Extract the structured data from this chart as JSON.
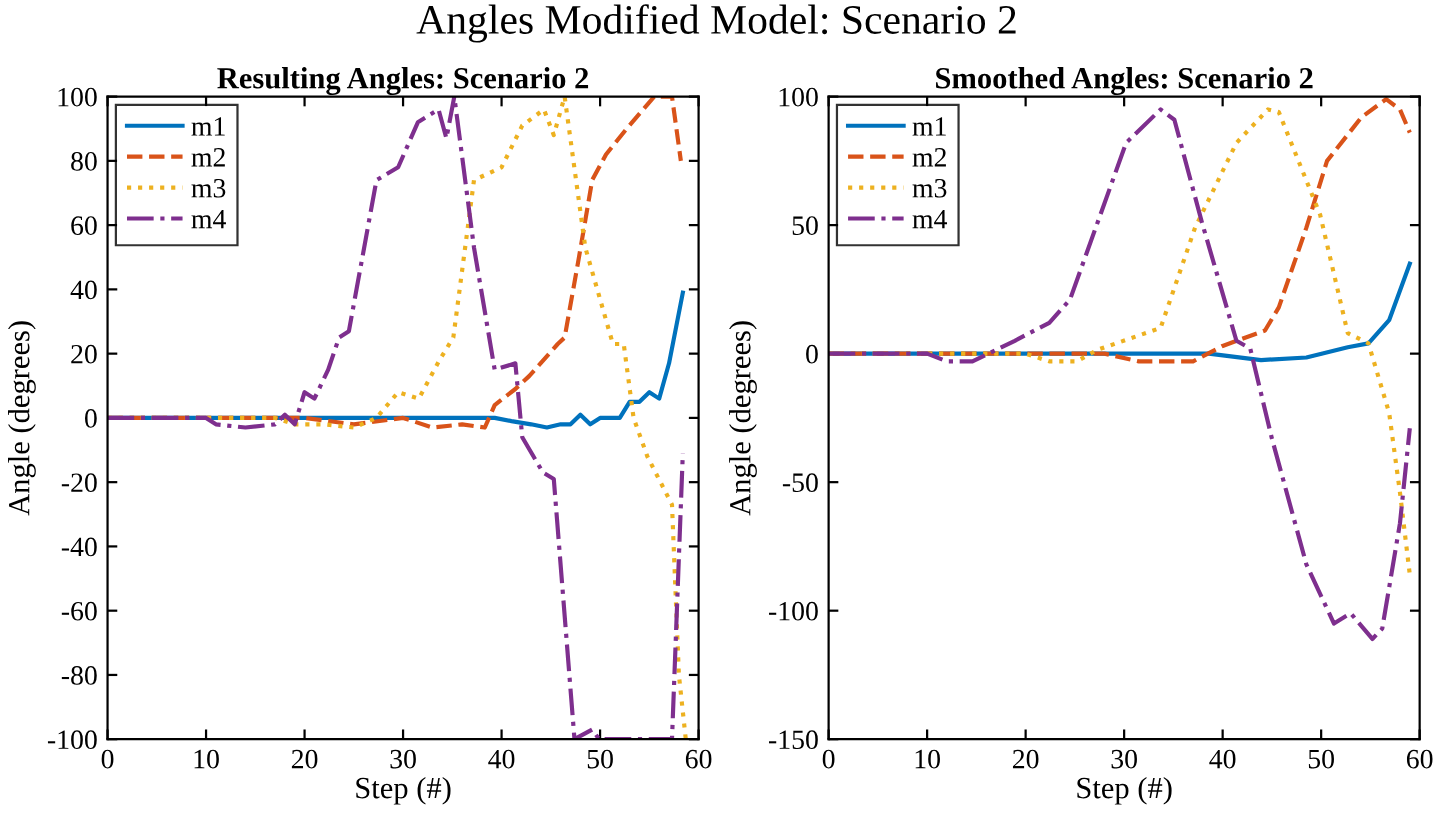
{
  "chart_data": [
    {
      "type": "line",
      "title": "Resulting Angles: Scenario 2",
      "xlabel": "Step (#)",
      "ylabel": "Angle (degrees)",
      "annotations": [
        "Angles Modified Model: Scenario 2"
      ],
      "xlim": [
        0,
        60
      ],
      "xticks": [
        0,
        10,
        20,
        30,
        40,
        50,
        60
      ],
      "ylim": [
        -100,
        100
      ],
      "yticks": [
        -100,
        -80,
        -60,
        -40,
        -20,
        0,
        20,
        40,
        60,
        80,
        100
      ],
      "grid": false,
      "legend": "top left",
      "series": [
        {
          "name": "m1",
          "color": "#0072bd",
          "line_style": "solid",
          "x": [
            0,
            39.3,
            41,
            43,
            44.6,
            46,
            47,
            48,
            49,
            50,
            52,
            53,
            54,
            55,
            56,
            57,
            58.4
          ],
          "values": [
            0,
            0,
            -1,
            -2,
            -3,
            -2,
            -2,
            1,
            -2,
            0,
            0,
            5,
            5,
            8,
            6,
            17,
            39
          ]
        },
        {
          "name": "m2",
          "color": "#d95319",
          "line_style": "dashed",
          "x": [
            0,
            20,
            25,
            30,
            33,
            36,
            38.3,
            39.3,
            41.4,
            42.8,
            45.7,
            46.4,
            47.8,
            49.2,
            50.6,
            52.7,
            55.5,
            57.3,
            58.2
          ],
          "values": [
            0,
            0,
            -2,
            0,
            -3,
            -2,
            -3,
            4,
            9,
            13,
            23,
            25,
            49,
            74,
            82,
            90,
            100,
            100,
            80
          ]
        },
        {
          "name": "m3",
          "color": "#edb120",
          "line_style": "dotted",
          "x": [
            0,
            17,
            19,
            22,
            25,
            27.3,
            29.5,
            31.6,
            33.7,
            35.1,
            37.2,
            40,
            42.1,
            44.3,
            45.3,
            46.4,
            48.5,
            51.3,
            52.4,
            53.4,
            54.8,
            57.3,
            58,
            58.7
          ],
          "values": [
            0,
            0,
            -2,
            -2,
            -3,
            0,
            8,
            6,
            18,
            25,
            74,
            78,
            91,
            96,
            88,
            100,
            53,
            23,
            23,
            0,
            -12,
            -27,
            -80,
            -100
          ]
        },
        {
          "name": "m4",
          "color": "#7e2f8e",
          "line_style": "dashdot",
          "x": [
            0,
            10,
            11,
            14,
            17,
            18,
            19,
            20,
            21,
            22.4,
            23.5,
            24.5,
            27.3,
            29.5,
            31.5,
            33.6,
            34.4,
            35.2,
            37.2,
            39.3,
            41.4,
            42.1,
            44.2,
            45.3,
            47.4,
            49.2,
            49.9,
            57.3,
            58.4
          ],
          "values": [
            0,
            0,
            -2,
            -3,
            -2,
            1,
            -2,
            8,
            6,
            15,
            25,
            27,
            74,
            78,
            92,
            96,
            87,
            100,
            53,
            15,
            17,
            -6,
            -17,
            -19,
            -100,
            -97,
            -100,
            -100,
            -11
          ]
        }
      ]
    },
    {
      "type": "line",
      "title": "Smoothed Angles: Scenario 2",
      "xlabel": "Step (#)",
      "ylabel": "Angle (degrees)",
      "xlim": [
        0,
        60
      ],
      "xticks": [
        0,
        10,
        20,
        30,
        40,
        50,
        60
      ],
      "ylim": [
        -150,
        100
      ],
      "yticks": [
        -150,
        -100,
        -50,
        0,
        50,
        100
      ],
      "grid": false,
      "legend": "top left",
      "series": [
        {
          "name": "m1",
          "color": "#0072bd",
          "line_style": "solid",
          "x": [
            0,
            38.6,
            43.9,
            48.5,
            52.7,
            54.8,
            56.9,
            59
          ],
          "values": [
            0,
            0,
            -2.5,
            -1.5,
            2.5,
            4,
            13,
            35
          ]
        },
        {
          "name": "m2",
          "color": "#d95319",
          "line_style": "dashed",
          "x": [
            0,
            28,
            31.5,
            37,
            40,
            44.3,
            45.7,
            48.5,
            50.6,
            54.1,
            56.6,
            58,
            59
          ],
          "values": [
            0,
            0,
            -3,
            -3,
            3,
            9,
            18,
            49,
            75,
            92,
            99,
            95,
            86
          ]
        },
        {
          "name": "m3",
          "color": "#edb120",
          "line_style": "dotted",
          "x": [
            0,
            20,
            22.4,
            25.2,
            27.3,
            33.7,
            37.2,
            41.4,
            44.6,
            45.7,
            49.9,
            52.7,
            54.8,
            56.9,
            58,
            59
          ],
          "values": [
            0,
            0,
            -3,
            -3,
            1.5,
            10,
            49,
            82,
            95,
            94,
            54,
            8,
            4,
            -23,
            -54,
            -86
          ]
        },
        {
          "name": "m4",
          "color": "#7e2f8e",
          "line_style": "dashdot",
          "x": [
            0,
            10,
            12,
            14.6,
            18.9,
            22.4,
            24.5,
            30.2,
            33.7,
            35.1,
            37.9,
            41.4,
            42.8,
            45,
            48.5,
            51.3,
            53,
            55.2,
            56.2,
            58,
            59
          ],
          "values": [
            0,
            0,
            -3,
            -3,
            5,
            12,
            21,
            82,
            95,
            91,
            51,
            5,
            2,
            -33,
            -82,
            -105,
            -101,
            -111,
            -107,
            -66,
            -29
          ]
        }
      ]
    }
  ]
}
